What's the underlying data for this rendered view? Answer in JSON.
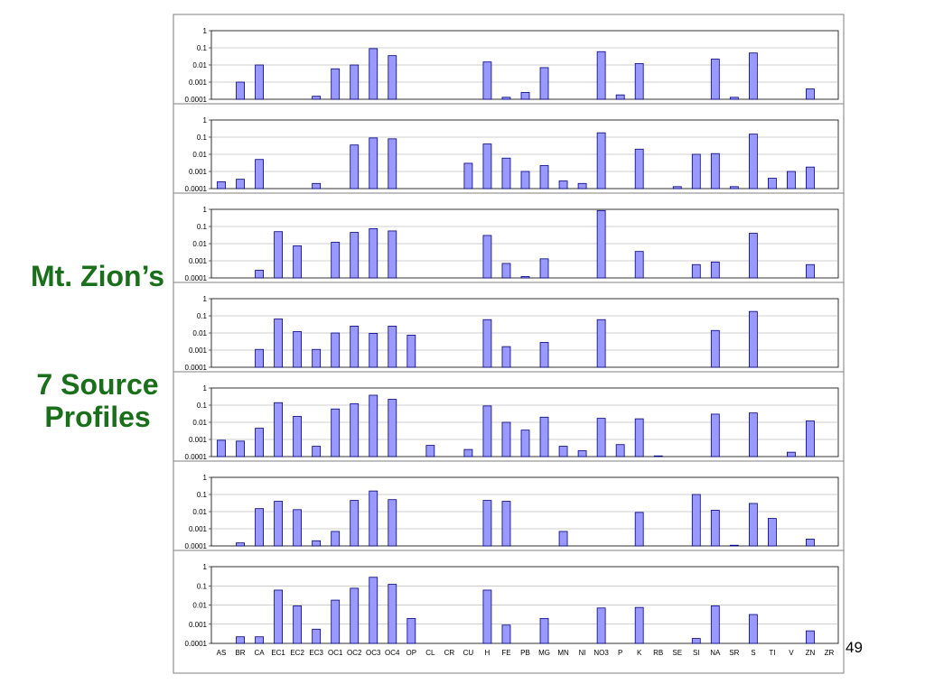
{
  "side_title": {
    "line1": "Mt. Zion’s",
    "line2": "7 Source Profiles"
  },
  "page_number": "49",
  "colors": {
    "bar_fill": "#9999ff",
    "bar_stroke": "#000080",
    "title": "#1a6f1a"
  },
  "chart_data": [
    {
      "type": "bar",
      "yscale": "log",
      "ylim": [
        0.0001,
        1
      ],
      "ytick_labels": [
        "1",
        "0.1",
        "0.01",
        "0.001",
        "0.0001"
      ],
      "categories": [
        "AS",
        "BR",
        "CA",
        "EC1",
        "EC2",
        "EC3",
        "OC1",
        "OC2",
        "OC3",
        "OC4",
        "OP",
        "CL",
        "CR",
        "CU",
        "H",
        "FE",
        "PB",
        "MG",
        "MN",
        "NI",
        "NO3",
        "P",
        "K",
        "RB",
        "SE",
        "SI",
        "NA",
        "SR",
        "S",
        "TI",
        "V",
        "ZN",
        "ZR"
      ],
      "values": [
        0,
        0.001,
        0.01,
        0,
        0,
        0.00015,
        0.006,
        0.01,
        0.09,
        0.035,
        0,
        0,
        0,
        0,
        0.015,
        0.00013,
        0.00025,
        0.007,
        0,
        0,
        0.06,
        0.00018,
        0.012,
        0,
        0,
        0,
        0.022,
        0.00013,
        0.05,
        0,
        0,
        0.0004,
        0
      ]
    },
    {
      "type": "bar",
      "yscale": "log",
      "ylim": [
        0.0001,
        1
      ],
      "ytick_labels": [
        "1",
        "0.1",
        "0.01",
        "0.001",
        "0.0001"
      ],
      "categories": [
        "AS",
        "BR",
        "CA",
        "EC1",
        "EC2",
        "EC3",
        "OC1",
        "OC2",
        "OC3",
        "OC4",
        "OP",
        "CL",
        "CR",
        "CU",
        "H",
        "FE",
        "PB",
        "MG",
        "MN",
        "NI",
        "NO3",
        "P",
        "K",
        "RB",
        "SE",
        "SI",
        "NA",
        "SR",
        "S",
        "TI",
        "V",
        "ZN",
        "ZR"
      ],
      "values": [
        0.00025,
        0.00035,
        0.005,
        0,
        0,
        0.0002,
        0,
        0.035,
        0.09,
        0.08,
        0,
        0,
        0,
        0.003,
        0.04,
        0.006,
        0.001,
        0.0022,
        0.00028,
        0.0002,
        0.18,
        0,
        0.02,
        0,
        0.00013,
        0.01,
        0.011,
        0.00013,
        0.15,
        0.0004,
        0.001,
        0.0018,
        0
      ]
    },
    {
      "type": "bar",
      "yscale": "log",
      "ylim": [
        0.0001,
        1
      ],
      "ytick_labels": [
        "1",
        "0.1",
        "0.01",
        "0.001",
        "0.0001"
      ],
      "categories": [
        "AS",
        "BR",
        "CA",
        "EC1",
        "EC2",
        "EC3",
        "OC1",
        "OC2",
        "OC3",
        "OC4",
        "OP",
        "CL",
        "CR",
        "CU",
        "H",
        "FE",
        "PB",
        "MG",
        "MN",
        "NI",
        "NO3",
        "P",
        "K",
        "RB",
        "SE",
        "SI",
        "NA",
        "SR",
        "S",
        "TI",
        "V",
        "ZN",
        "ZR"
      ],
      "values": [
        0,
        0,
        0.00028,
        0.05,
        0.0075,
        0,
        0.012,
        0.045,
        0.075,
        0.055,
        0,
        0,
        0,
        0,
        0.03,
        0.0007,
        0.00012,
        0.0013,
        0,
        0,
        0.85,
        0,
        0.0035,
        0,
        0,
        0.0006,
        0.00085,
        0,
        0.04,
        0,
        0,
        0.0006,
        0
      ]
    },
    {
      "type": "bar",
      "yscale": "log",
      "ylim": [
        0.0001,
        1
      ],
      "ytick_labels": [
        "1",
        "0.1",
        "0.01",
        "0.001",
        "0.0001"
      ],
      "categories": [
        "AS",
        "BR",
        "CA",
        "EC1",
        "EC2",
        "EC3",
        "OC1",
        "OC2",
        "OC3",
        "OC4",
        "OP",
        "CL",
        "CR",
        "CU",
        "H",
        "FE",
        "PB",
        "MG",
        "MN",
        "NI",
        "NO3",
        "P",
        "K",
        "RB",
        "SE",
        "SI",
        "NA",
        "SR",
        "S",
        "TI",
        "V",
        "ZN",
        "ZR"
      ],
      "values": [
        0,
        0,
        0.0011,
        0.065,
        0.012,
        0.0011,
        0.01,
        0.025,
        0.0095,
        0.025,
        0.0075,
        0,
        0,
        0,
        0.06,
        0.0016,
        0,
        0.0028,
        0,
        0,
        0.06,
        0,
        0,
        0,
        0,
        0,
        0.014,
        0,
        0.18,
        0,
        0,
        0,
        0
      ]
    },
    {
      "type": "bar",
      "yscale": "log",
      "ylim": [
        0.0001,
        1
      ],
      "ytick_labels": [
        "1",
        "0.1",
        "0.01",
        "0.001",
        "0.0001"
      ],
      "categories": [
        "AS",
        "BR",
        "CA",
        "EC1",
        "EC2",
        "EC3",
        "OC1",
        "OC2",
        "OC3",
        "OC4",
        "OP",
        "CL",
        "CR",
        "CU",
        "H",
        "FE",
        "PB",
        "MG",
        "MN",
        "NI",
        "NO3",
        "P",
        "K",
        "RB",
        "SE",
        "SI",
        "NA",
        "SR",
        "S",
        "TI",
        "V",
        "ZN",
        "ZR"
      ],
      "values": [
        0.0009,
        0.0008,
        0.0045,
        0.14,
        0.022,
        0.0004,
        0.06,
        0.12,
        0.38,
        0.22,
        0,
        0.00045,
        0,
        0.00026,
        0.09,
        0.01,
        0.0035,
        0.02,
        0.0004,
        0.00022,
        0.017,
        0.0005,
        0.016,
        0.00011,
        0,
        0,
        0.03,
        0,
        0.035,
        0,
        0.00018,
        0.012,
        0
      ]
    },
    {
      "type": "bar",
      "yscale": "log",
      "ylim": [
        0.0001,
        1
      ],
      "ytick_labels": [
        "1",
        "0.1",
        "0.01",
        "0.001",
        "0.0001"
      ],
      "categories": [
        "AS",
        "BR",
        "CA",
        "EC1",
        "EC2",
        "EC3",
        "OC1",
        "OC2",
        "OC3",
        "OC4",
        "OP",
        "CL",
        "CR",
        "CU",
        "H",
        "FE",
        "PB",
        "MG",
        "MN",
        "NI",
        "NO3",
        "P",
        "K",
        "RB",
        "SE",
        "SI",
        "NA",
        "SR",
        "S",
        "TI",
        "V",
        "ZN",
        "ZR"
      ],
      "values": [
        0,
        0.00015,
        0.015,
        0.04,
        0.013,
        0.0002,
        0.0007,
        0.045,
        0.16,
        0.05,
        0,
        0,
        0,
        0,
        0.045,
        0.04,
        0,
        0,
        0.0007,
        0,
        0,
        0,
        0.009,
        0,
        0,
        0.1,
        0.012,
        0.00011,
        0.03,
        0.004,
        0,
        0.00025,
        0
      ]
    },
    {
      "type": "bar",
      "yscale": "log",
      "ylim": [
        0.0001,
        1
      ],
      "ytick_labels": [
        "1",
        "0.1",
        "0.01",
        "0.001",
        "0.0001"
      ],
      "categories": [
        "AS",
        "BR",
        "CA",
        "EC1",
        "EC2",
        "EC3",
        "OC1",
        "OC2",
        "OC3",
        "OC4",
        "OP",
        "CL",
        "CR",
        "CU",
        "H",
        "FE",
        "PB",
        "MG",
        "MN",
        "NI",
        "NO3",
        "P",
        "K",
        "RB",
        "SE",
        "SI",
        "NA",
        "SR",
        "S",
        "TI",
        "V",
        "ZN",
        "ZR"
      ],
      "values": [
        0,
        0.00022,
        0.00022,
        0.06,
        0.009,
        0.00055,
        0.018,
        0.075,
        0.28,
        0.12,
        0.002,
        0,
        0,
        0,
        0.06,
        0.0009,
        0,
        0.002,
        0,
        0,
        0.007,
        0,
        0.0075,
        0,
        0,
        0.00018,
        0.009,
        0,
        0.0032,
        0,
        0,
        0.00045,
        0
      ]
    }
  ]
}
